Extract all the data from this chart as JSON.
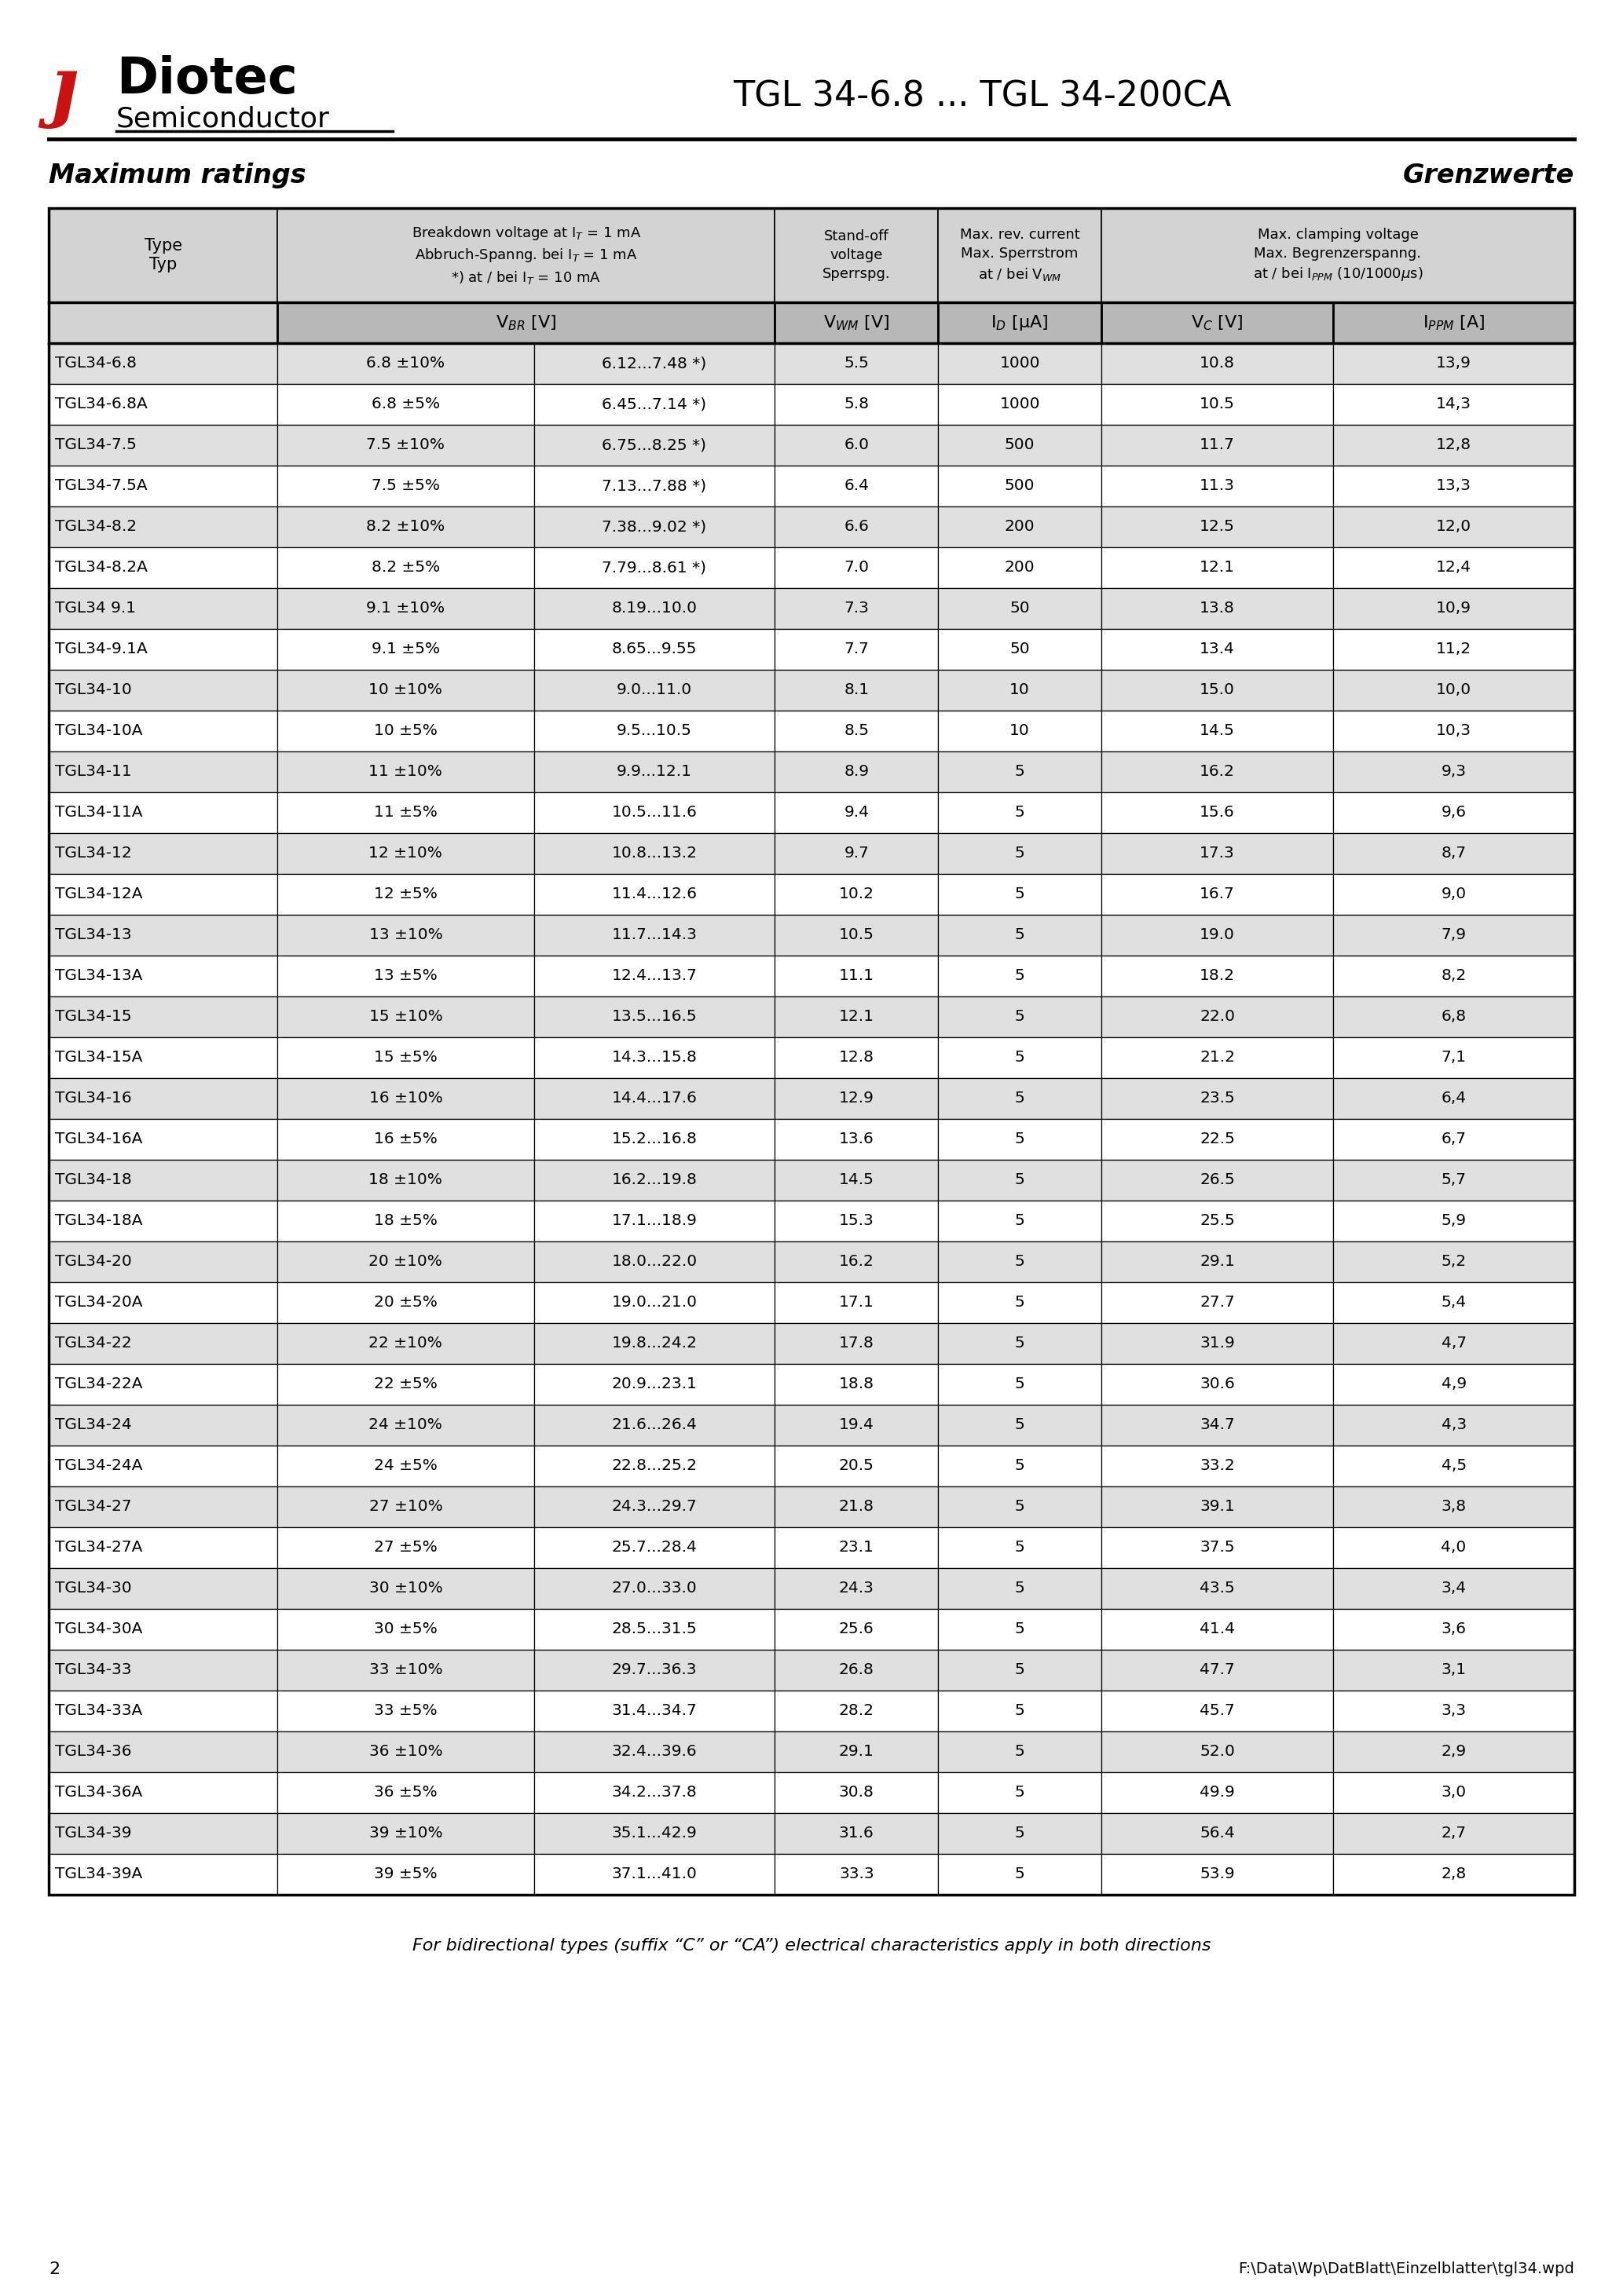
{
  "title": "TGL 34-6.8 ... TGL 34-200CA",
  "page_num": "2",
  "footer_file": "F:\\Data\\Wp\\DatBlatt\\Einzelblatter\\tgl34.wpd",
  "section_title_left": "Maximum ratings",
  "section_title_right": "Grenzwerte",
  "table_data": [
    [
      "TGL34-6.8",
      "6.8 ±10%",
      "6.12...7.48 *)",
      "5.5",
      "1000",
      "10.8",
      "13,9"
    ],
    [
      "TGL34-6.8A",
      "6.8 ±5%",
      "6.45...7.14 *)",
      "5.8",
      "1000",
      "10.5",
      "14,3"
    ],
    [
      "TGL34-7.5",
      "7.5 ±10%",
      "6.75...8.25 *)",
      "6.0",
      "500",
      "11.7",
      "12,8"
    ],
    [
      "TGL34-7.5A",
      "7.5 ±5%",
      "7.13...7.88 *)",
      "6.4",
      "500",
      "11.3",
      "13,3"
    ],
    [
      "TGL34-8.2",
      "8.2 ±10%",
      "7.38...9.02 *)",
      "6.6",
      "200",
      "12.5",
      "12,0"
    ],
    [
      "TGL34-8.2A",
      "8.2 ±5%",
      "7.79...8.61 *)",
      "7.0",
      "200",
      "12.1",
      "12,4"
    ],
    [
      "TGL34 9.1",
      "9.1 ±10%",
      "8.19...10.0",
      "7.3",
      "50",
      "13.8",
      "10,9"
    ],
    [
      "TGL34-9.1A",
      "9.1 ±5%",
      "8.65...9.55",
      "7.7",
      "50",
      "13.4",
      "11,2"
    ],
    [
      "TGL34-10",
      "10 ±10%",
      "9.0...11.0",
      "8.1",
      "10",
      "15.0",
      "10,0"
    ],
    [
      "TGL34-10A",
      "10 ±5%",
      "9.5...10.5",
      "8.5",
      "10",
      "14.5",
      "10,3"
    ],
    [
      "TGL34-11",
      "11 ±10%",
      "9.9...12.1",
      "8.9",
      "5",
      "16.2",
      "9,3"
    ],
    [
      "TGL34-11A",
      "11 ±5%",
      "10.5...11.6",
      "9.4",
      "5",
      "15.6",
      "9,6"
    ],
    [
      "TGL34-12",
      "12 ±10%",
      "10.8...13.2",
      "9.7",
      "5",
      "17.3",
      "8,7"
    ],
    [
      "TGL34-12A",
      "12 ±5%",
      "11.4...12.6",
      "10.2",
      "5",
      "16.7",
      "9,0"
    ],
    [
      "TGL34-13",
      "13 ±10%",
      "11.7...14.3",
      "10.5",
      "5",
      "19.0",
      "7,9"
    ],
    [
      "TGL34-13A",
      "13 ±5%",
      "12.4...13.7",
      "11.1",
      "5",
      "18.2",
      "8,2"
    ],
    [
      "TGL34-15",
      "15 ±10%",
      "13.5...16.5",
      "12.1",
      "5",
      "22.0",
      "6,8"
    ],
    [
      "TGL34-15A",
      "15 ±5%",
      "14.3...15.8",
      "12.8",
      "5",
      "21.2",
      "7,1"
    ],
    [
      "TGL34-16",
      "16 ±10%",
      "14.4...17.6",
      "12.9",
      "5",
      "23.5",
      "6,4"
    ],
    [
      "TGL34-16A",
      "16 ±5%",
      "15.2...16.8",
      "13.6",
      "5",
      "22.5",
      "6,7"
    ],
    [
      "TGL34-18",
      "18 ±10%",
      "16.2...19.8",
      "14.5",
      "5",
      "26.5",
      "5,7"
    ],
    [
      "TGL34-18A",
      "18 ±5%",
      "17.1...18.9",
      "15.3",
      "5",
      "25.5",
      "5,9"
    ],
    [
      "TGL34-20",
      "20 ±10%",
      "18.0...22.0",
      "16.2",
      "5",
      "29.1",
      "5,2"
    ],
    [
      "TGL34-20A",
      "20 ±5%",
      "19.0...21.0",
      "17.1",
      "5",
      "27.7",
      "5,4"
    ],
    [
      "TGL34-22",
      "22 ±10%",
      "19.8...24.2",
      "17.8",
      "5",
      "31.9",
      "4,7"
    ],
    [
      "TGL34-22A",
      "22 ±5%",
      "20.9...23.1",
      "18.8",
      "5",
      "30.6",
      "4,9"
    ],
    [
      "TGL34-24",
      "24 ±10%",
      "21.6...26.4",
      "19.4",
      "5",
      "34.7",
      "4,3"
    ],
    [
      "TGL34-24A",
      "24 ±5%",
      "22.8...25.2",
      "20.5",
      "5",
      "33.2",
      "4,5"
    ],
    [
      "TGL34-27",
      "27 ±10%",
      "24.3...29.7",
      "21.8",
      "5",
      "39.1",
      "3,8"
    ],
    [
      "TGL34-27A",
      "27 ±5%",
      "25.7...28.4",
      "23.1",
      "5",
      "37.5",
      "4,0"
    ],
    [
      "TGL34-30",
      "30 ±10%",
      "27.0...33.0",
      "24.3",
      "5",
      "43.5",
      "3,4"
    ],
    [
      "TGL34-30A",
      "30 ±5%",
      "28.5...31.5",
      "25.6",
      "5",
      "41.4",
      "3,6"
    ],
    [
      "TGL34-33",
      "33 ±10%",
      "29.7...36.3",
      "26.8",
      "5",
      "47.7",
      "3,1"
    ],
    [
      "TGL34-33A",
      "33 ±5%",
      "31.4...34.7",
      "28.2",
      "5",
      "45.7",
      "3,3"
    ],
    [
      "TGL34-36",
      "36 ±10%",
      "32.4...39.6",
      "29.1",
      "5",
      "52.0",
      "2,9"
    ],
    [
      "TGL34-36A",
      "36 ±5%",
      "34.2...37.8",
      "30.8",
      "5",
      "49.9",
      "3,0"
    ],
    [
      "TGL34-39",
      "39 ±10%",
      "35.1...42.9",
      "31.6",
      "5",
      "56.4",
      "2,7"
    ],
    [
      "TGL34-39A",
      "39 ±5%",
      "37.1...41.0",
      "33.3",
      "5",
      "53.9",
      "2,8"
    ]
  ],
  "footer_note": "For bidirectional types (suffix “C” or “CA”) electrical characteristics apply in both directions",
  "bg_color": "#ffffff",
  "header_bg": "#d3d3d3",
  "row_bg_odd": "#e0e0e0",
  "row_bg_even": "#ffffff",
  "border_thick": 2.5,
  "border_thin": 1.0
}
